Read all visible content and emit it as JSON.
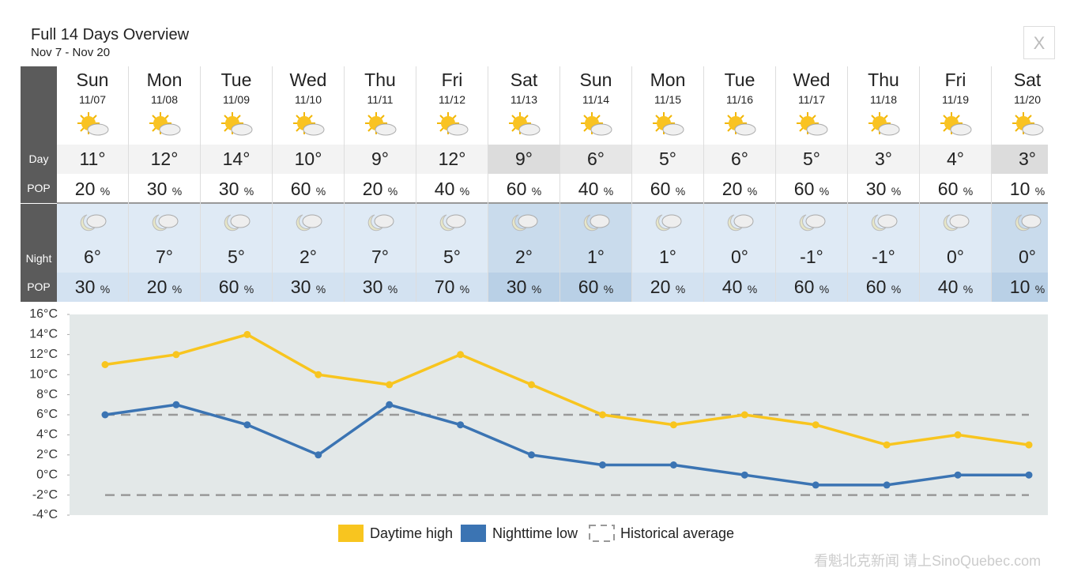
{
  "header": {
    "title": "Full 14 Days Overview",
    "subtitle": "Nov 7 - Nov 20",
    "close": "X"
  },
  "table": {
    "row_labels": [
      "Day",
      "POP",
      "Night",
      "POP"
    ],
    "percent_sign": "%",
    "days": [
      {
        "name": "Sun",
        "date": "11/07",
        "day_temp": "11°",
        "day_pop": 20,
        "night_temp": "6°",
        "night_pop": 30
      },
      {
        "name": "Mon",
        "date": "11/08",
        "day_temp": "12°",
        "day_pop": 30,
        "night_temp": "7°",
        "night_pop": 20
      },
      {
        "name": "Tue",
        "date": "11/09",
        "day_temp": "14°",
        "day_pop": 30,
        "night_temp": "5°",
        "night_pop": 60
      },
      {
        "name": "Wed",
        "date": "11/10",
        "day_temp": "10°",
        "day_pop": 60,
        "night_temp": "2°",
        "night_pop": 30
      },
      {
        "name": "Thu",
        "date": "11/11",
        "day_temp": "9°",
        "day_pop": 20,
        "night_temp": "7°",
        "night_pop": 30
      },
      {
        "name": "Fri",
        "date": "11/12",
        "day_temp": "12°",
        "day_pop": 40,
        "night_temp": "5°",
        "night_pop": 70
      },
      {
        "name": "Sat",
        "date": "11/13",
        "day_temp": "9°",
        "day_pop": 60,
        "night_temp": "2°",
        "night_pop": 30
      },
      {
        "name": "Sun",
        "date": "11/14",
        "day_temp": "6°",
        "day_pop": 40,
        "night_temp": "1°",
        "night_pop": 60
      },
      {
        "name": "Mon",
        "date": "11/15",
        "day_temp": "5°",
        "day_pop": 60,
        "night_temp": "1°",
        "night_pop": 20
      },
      {
        "name": "Tue",
        "date": "11/16",
        "day_temp": "6°",
        "day_pop": 20,
        "night_temp": "0°",
        "night_pop": 40
      },
      {
        "name": "Wed",
        "date": "11/17",
        "day_temp": "5°",
        "day_pop": 60,
        "night_temp": "-1°",
        "night_pop": 60
      },
      {
        "name": "Thu",
        "date": "11/18",
        "day_temp": "3°",
        "day_pop": 30,
        "night_temp": "-1°",
        "night_pop": 60
      },
      {
        "name": "Fri",
        "date": "11/19",
        "day_temp": "4°",
        "day_pop": 60,
        "night_temp": "0°",
        "night_pop": 40
      },
      {
        "name": "Sat",
        "date": "11/20",
        "day_temp": "3°",
        "day_pop": 10,
        "night_temp": "0°",
        "night_pop": 10
      }
    ]
  },
  "chart_data": {
    "type": "line",
    "ylim": [
      -4,
      16
    ],
    "yticks": [
      {
        "value": -4,
        "label": "-4°C"
      },
      {
        "value": -2,
        "label": "-2°C"
      },
      {
        "value": 0,
        "label": "0°C"
      },
      {
        "value": 2,
        "label": "2°C"
      },
      {
        "value": 4,
        "label": "4°C"
      },
      {
        "value": 6,
        "label": "6°C"
      },
      {
        "value": 8,
        "label": "8°C"
      },
      {
        "value": 10,
        "label": "10°C"
      },
      {
        "value": 12,
        "label": "12°C"
      },
      {
        "value": 14,
        "label": "14°C"
      },
      {
        "value": 16,
        "label": "16°C"
      }
    ],
    "series": [
      {
        "name": "Daytime high",
        "color": "#f8c51f",
        "values": [
          11,
          12,
          14,
          10,
          9,
          12,
          9,
          6,
          5,
          6,
          5,
          3,
          4,
          3
        ]
      },
      {
        "name": "Nighttime low",
        "color": "#3b74b3",
        "values": [
          6,
          7,
          5,
          2,
          7,
          5,
          2,
          1,
          1,
          0,
          -1,
          -1,
          0,
          0
        ]
      }
    ],
    "reference": {
      "name": "Historical average",
      "color": "#999999",
      "values": [
        6,
        -2
      ]
    }
  },
  "watermark": "看魁北克新闻 请上SinoQuebec.com"
}
